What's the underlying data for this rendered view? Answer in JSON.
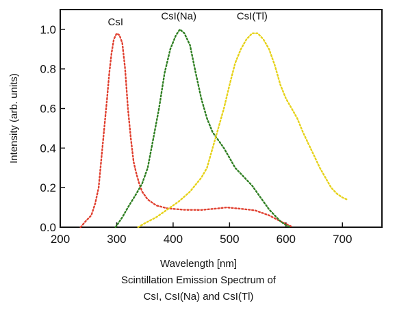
{
  "chart_data": {
    "type": "line",
    "title": "",
    "xlabel": "Wavelength [nm]",
    "ylabel": "Intensity (arb. units)",
    "caption_lines": [
      "Scintillation Emission Spectrum of",
      "CsI, CsI(Na) and CsI(Tl)"
    ],
    "xlim": [
      200,
      770
    ],
    "ylim": [
      0,
      1.1
    ],
    "x_ticks": [
      "200",
      "300",
      "400",
      "500",
      "600",
      "700"
    ],
    "x_tick_values": [
      200,
      300,
      400,
      500,
      600,
      700
    ],
    "y_ticks": [
      "0.0",
      "0.2",
      "0.4",
      "0.6",
      "0.8",
      "1.0"
    ],
    "y_tick_values": [
      0,
      0.2,
      0.4,
      0.6,
      0.8,
      1.0
    ],
    "grid": false,
    "series": [
      {
        "name": "CsI",
        "color": "#e04030",
        "label_at": [
          298,
          1.02
        ],
        "points": [
          [
            236,
            0.0
          ],
          [
            245,
            0.03
          ],
          [
            255,
            0.06
          ],
          [
            262,
            0.12
          ],
          [
            268,
            0.2
          ],
          [
            273,
            0.35
          ],
          [
            278,
            0.5
          ],
          [
            283,
            0.65
          ],
          [
            287,
            0.78
          ],
          [
            291,
            0.88
          ],
          [
            295,
            0.95
          ],
          [
            300,
            0.98
          ],
          [
            305,
            0.97
          ],
          [
            310,
            0.93
          ],
          [
            315,
            0.8
          ],
          [
            320,
            0.6
          ],
          [
            325,
            0.45
          ],
          [
            330,
            0.33
          ],
          [
            335,
            0.27
          ],
          [
            340,
            0.22
          ],
          [
            345,
            0.18
          ],
          [
            355,
            0.14
          ],
          [
            370,
            0.11
          ],
          [
            390,
            0.095
          ],
          [
            420,
            0.088
          ],
          [
            450,
            0.087
          ],
          [
            480,
            0.095
          ],
          [
            495,
            0.1
          ],
          [
            520,
            0.093
          ],
          [
            545,
            0.085
          ],
          [
            570,
            0.06
          ],
          [
            590,
            0.03
          ],
          [
            605,
            0.01
          ],
          [
            612,
            0.0
          ]
        ]
      },
      {
        "name": "CsI(Na)",
        "color": "#2f7f22",
        "label_at": [
          410,
          1.05
        ],
        "points": [
          [
            298,
            0.0
          ],
          [
            310,
            0.05
          ],
          [
            320,
            0.1
          ],
          [
            335,
            0.17
          ],
          [
            345,
            0.22
          ],
          [
            355,
            0.3
          ],
          [
            365,
            0.45
          ],
          [
            375,
            0.6
          ],
          [
            385,
            0.78
          ],
          [
            395,
            0.9
          ],
          [
            405,
            0.97
          ],
          [
            412,
            1.0
          ],
          [
            420,
            0.98
          ],
          [
            430,
            0.92
          ],
          [
            440,
            0.78
          ],
          [
            450,
            0.65
          ],
          [
            460,
            0.55
          ],
          [
            470,
            0.48
          ],
          [
            480,
            0.44
          ],
          [
            490,
            0.4
          ],
          [
            500,
            0.35
          ],
          [
            510,
            0.3
          ],
          [
            520,
            0.27
          ],
          [
            530,
            0.24
          ],
          [
            540,
            0.21
          ],
          [
            550,
            0.17
          ],
          [
            560,
            0.13
          ],
          [
            570,
            0.09
          ],
          [
            580,
            0.06
          ],
          [
            590,
            0.03
          ],
          [
            600,
            0.01
          ],
          [
            608,
            0.0
          ]
        ]
      },
      {
        "name": "CsI(Tl)",
        "color": "#e6d21a",
        "label_at": [
          540,
          1.05
        ],
        "points": [
          [
            338,
            0.0
          ],
          [
            350,
            0.02
          ],
          [
            370,
            0.05
          ],
          [
            390,
            0.09
          ],
          [
            410,
            0.13
          ],
          [
            430,
            0.18
          ],
          [
            450,
            0.25
          ],
          [
            460,
            0.3
          ],
          [
            470,
            0.4
          ],
          [
            480,
            0.5
          ],
          [
            490,
            0.6
          ],
          [
            500,
            0.72
          ],
          [
            510,
            0.83
          ],
          [
            520,
            0.9
          ],
          [
            530,
            0.95
          ],
          [
            540,
            0.98
          ],
          [
            550,
            0.98
          ],
          [
            560,
            0.95
          ],
          [
            570,
            0.9
          ],
          [
            580,
            0.82
          ],
          [
            590,
            0.72
          ],
          [
            600,
            0.65
          ],
          [
            610,
            0.6
          ],
          [
            620,
            0.55
          ],
          [
            630,
            0.48
          ],
          [
            640,
            0.42
          ],
          [
            650,
            0.36
          ],
          [
            660,
            0.3
          ],
          [
            670,
            0.25
          ],
          [
            680,
            0.2
          ],
          [
            690,
            0.17
          ],
          [
            700,
            0.15
          ],
          [
            708,
            0.14
          ]
        ]
      }
    ]
  }
}
